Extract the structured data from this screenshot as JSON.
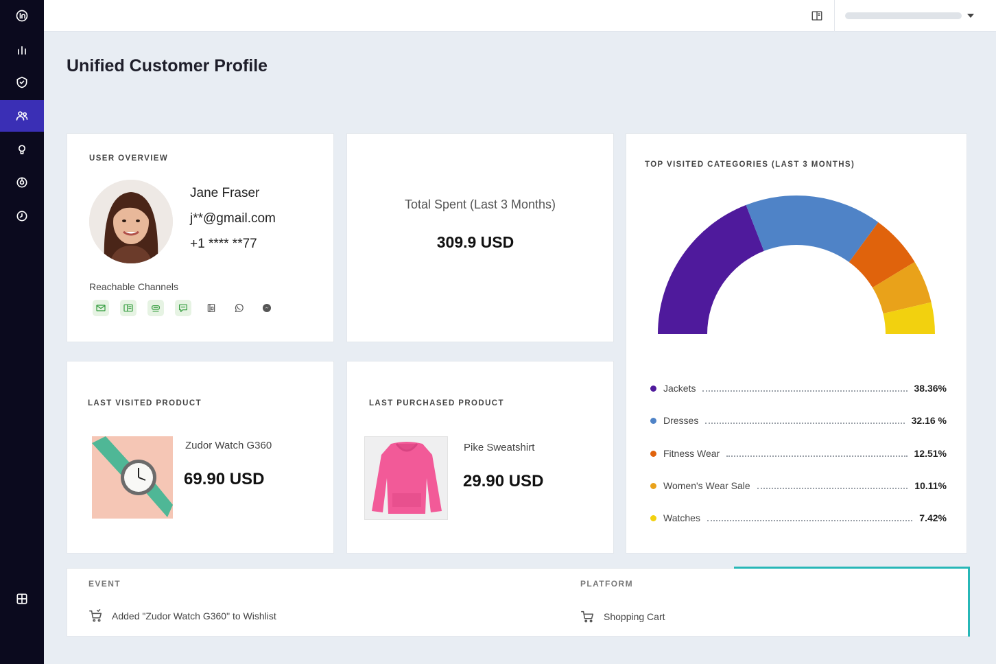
{
  "page": {
    "title": "Unified Customer Profile"
  },
  "sidebar": {
    "items": [
      {
        "icon": "logo-icon"
      },
      {
        "icon": "analytics-icon"
      },
      {
        "icon": "shield-icon"
      },
      {
        "icon": "users-icon",
        "active": true
      },
      {
        "icon": "lightbulb-icon"
      },
      {
        "icon": "target-icon"
      },
      {
        "icon": "history-icon"
      },
      {
        "icon": "apps-grid-icon"
      }
    ]
  },
  "user_overview": {
    "label": "USER OVERVIEW",
    "name": "Jane Fraser",
    "email": "j**@gmail.com",
    "phone": "+1 **** **77",
    "channels_label": "Reachable Channels",
    "channels": [
      {
        "icon": "email-icon",
        "reachable": true
      },
      {
        "icon": "web-push-icon",
        "reachable": true
      },
      {
        "icon": "sms-icon",
        "reachable": true
      },
      {
        "icon": "in-app-icon",
        "reachable": true
      },
      {
        "icon": "app-inbox-icon",
        "reachable": false
      },
      {
        "icon": "whatsapp-icon",
        "reachable": false
      },
      {
        "icon": "messenger-icon",
        "reachable": false
      }
    ]
  },
  "total_spent": {
    "label": "Total Spent (Last 3 Months)",
    "value": "309.9 USD"
  },
  "last_visited": {
    "label": "LAST VISITED PRODUCT",
    "name": "Zudor Watch G360",
    "price": "69.90 USD"
  },
  "last_purchased": {
    "label": "LAST PURCHASED PRODUCT",
    "name": "Pike Sweatshirt",
    "price": "29.90 USD"
  },
  "chart_data": {
    "type": "pie",
    "variant": "semi-donut",
    "title": "TOP VISITED CATEGORIES (LAST 3 MONTHS)",
    "categories": [
      "Jackets",
      "Dresses",
      "Fitness Wear",
      "Women's Wear Sale",
      "Watches"
    ],
    "values": [
      38.36,
      32.16,
      12.51,
      10.11,
      7.42
    ],
    "value_labels": [
      "38.36%",
      "32.16 %",
      "12.51%",
      "10.11%",
      "7.42%"
    ],
    "colors": [
      "#4f1a9c",
      "#4f83c7",
      "#e0630c",
      "#e9a21a",
      "#f2d10f"
    ],
    "legend": "bottom"
  },
  "events": {
    "headers": {
      "event": "EVENT",
      "platform": "PLATFORM"
    },
    "rows": [
      {
        "event": "Added \"Zudor Watch G360\" to Wishlist",
        "platform": "Shopping Cart"
      }
    ]
  }
}
